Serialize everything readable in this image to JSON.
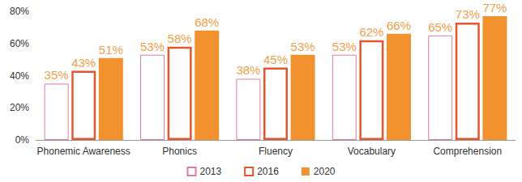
{
  "chart_data": {
    "type": "bar",
    "categories": [
      "Phonemic Awareness",
      "Phonics",
      "Fluency",
      "Vocabulary",
      "Comprehension"
    ],
    "series": [
      {
        "name": "2013",
        "color": "#e07aa6",
        "values": [
          35,
          53,
          38,
          53,
          65
        ],
        "value_labels": [
          "35%",
          "53%",
          "38%",
          "53%",
          "65%"
        ]
      },
      {
        "name": "2016",
        "color": "#e4572e",
        "values": [
          43,
          58,
          45,
          62,
          73
        ],
        "value_labels": [
          "43%",
          "58%",
          "45%",
          "62%",
          "73%"
        ]
      },
      {
        "name": "2020",
        "color": "#f2922f",
        "values": [
          51,
          68,
          53,
          66,
          77
        ],
        "value_labels": [
          "51%",
          "68%",
          "53%",
          "66%",
          "77%"
        ]
      }
    ],
    "ylim": [
      0,
      80
    ],
    "yticks": [
      {
        "value": 0,
        "label": "0%"
      },
      {
        "value": 20,
        "label": "20%"
      },
      {
        "value": 40,
        "label": "40%"
      },
      {
        "value": 60,
        "label": "60%"
      },
      {
        "value": 80,
        "label": "80%"
      }
    ],
    "grid": false,
    "legend": "bottom",
    "data_labels": true
  }
}
